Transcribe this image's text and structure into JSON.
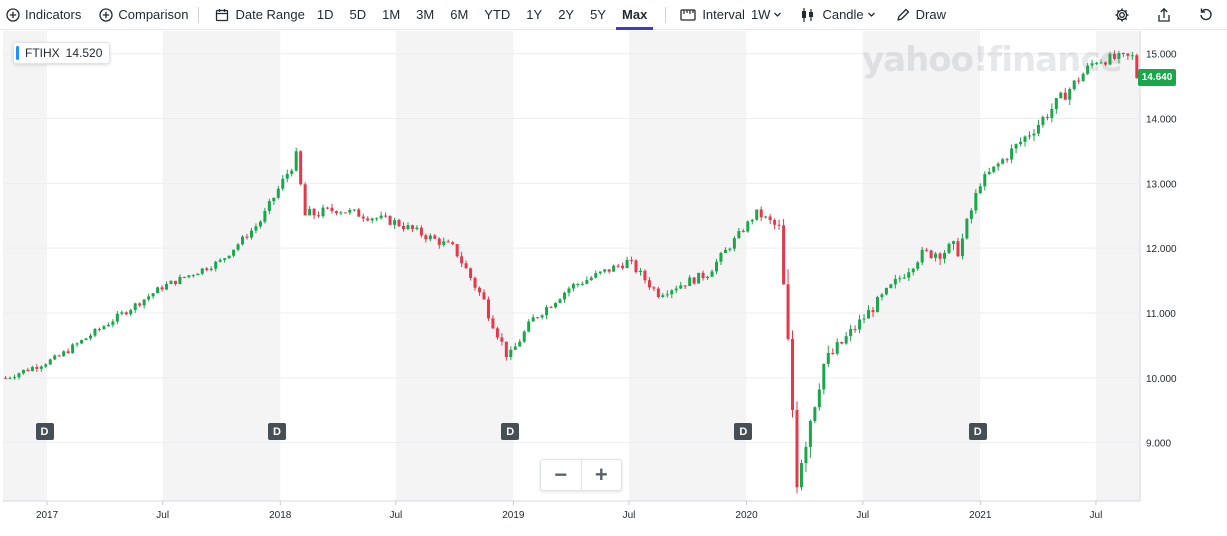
{
  "toolbar": {
    "indicators": "Indicators",
    "comparison": "Comparison",
    "date_range": "Date Range",
    "ranges": [
      "1D",
      "5D",
      "1M",
      "3M",
      "6M",
      "YTD",
      "1Y",
      "2Y",
      "5Y",
      "Max"
    ],
    "active_range": "Max",
    "interval_label": "Interval",
    "interval_value": "1W",
    "chart_type": "Candle",
    "draw": "Draw"
  },
  "ticker": {
    "symbol": "FTIHX",
    "value": "14.520"
  },
  "price_badge": "14.640",
  "watermark": "yahoo!finance",
  "zoom": {
    "minus": "−",
    "plus": "+"
  },
  "dividend_markers": [
    {
      "label": "D",
      "x": "2016-12-28"
    },
    {
      "label": "D",
      "x": "2017-12-27"
    },
    {
      "label": "D",
      "x": "2018-12-27"
    },
    {
      "label": "D",
      "x": "2019-12-27"
    },
    {
      "label": "D",
      "x": "2020-12-28"
    }
  ],
  "colors": {
    "up": "#1aa64a",
    "down": "#e5384a",
    "band": "#f4f4f5",
    "grid": "#eceef0",
    "badge": "#1aa64a"
  },
  "chart_data": {
    "type": "candlestick",
    "title": "",
    "xlabel": "",
    "ylabel": "",
    "ylim": [
      8.1,
      15.35
    ],
    "y_ticks": [
      "9.000",
      "10.000",
      "11.000",
      "12.000",
      "13.000",
      "14.000",
      "15.000"
    ],
    "x_ticks": [
      "2017",
      "Jul",
      "2018",
      "Jul",
      "2019",
      "Jul",
      "2020",
      "Jul",
      "2021",
      "Jul"
    ],
    "x_range": [
      "2016-10-24",
      "2021-09-08"
    ],
    "last_close": 14.64,
    "series": [
      {
        "x": [
          "2016-10-28",
          "2017-01-15",
          "2017-03-31",
          "2017-06-30",
          "2017-09-30",
          "2017-11-30",
          "2018-01-26",
          "2018-02-09",
          "2018-03-31",
          "2018-06-30",
          "2018-09-30",
          "2018-11-15",
          "2018-12-24",
          "2019-01-31",
          "2019-03-31",
          "2019-06-30",
          "2019-08-15",
          "2019-10-31",
          "2020-01-17",
          "2020-02-21",
          "2020-03-20",
          "2020-04-30",
          "2020-06-30",
          "2020-09-30",
          "2020-11-30",
          "2020-12-31",
          "2021-03-31",
          "2021-06-30",
          "2021-08-31",
          "2021-09-03"
        ],
        "close": [
          10.0,
          10.3,
          10.8,
          11.4,
          11.8,
          12.4,
          13.4,
          12.5,
          12.6,
          12.4,
          12.0,
          11.2,
          10.3,
          10.9,
          11.4,
          11.8,
          11.3,
          11.6,
          12.55,
          12.3,
          8.6,
          10.2,
          10.9,
          11.9,
          12.0,
          13.0,
          13.9,
          14.9,
          14.95,
          14.64
        ],
        "high": [
          10.1,
          10.4,
          10.9,
          11.5,
          11.9,
          12.5,
          13.45,
          12.7,
          12.8,
          12.6,
          12.2,
          11.5,
          10.6,
          11.0,
          11.5,
          11.9,
          11.5,
          11.8,
          12.6,
          12.4,
          10.6,
          10.4,
          11.0,
          12.1,
          12.4,
          13.1,
          14.3,
          15.1,
          15.15,
          14.8
        ],
        "low": [
          9.8,
          10.1,
          10.6,
          11.2,
          11.6,
          12.2,
          12.9,
          12.1,
          12.4,
          12.2,
          11.8,
          10.9,
          10.2,
          10.6,
          11.1,
          11.5,
          11.1,
          11.4,
          12.3,
          11.8,
          8.25,
          9.6,
          10.5,
          11.6,
          11.6,
          12.7,
          13.7,
          14.6,
          14.7,
          14.5
        ],
        "up_color": "#1aa64a",
        "down_color": "#e5384a"
      }
    ]
  }
}
